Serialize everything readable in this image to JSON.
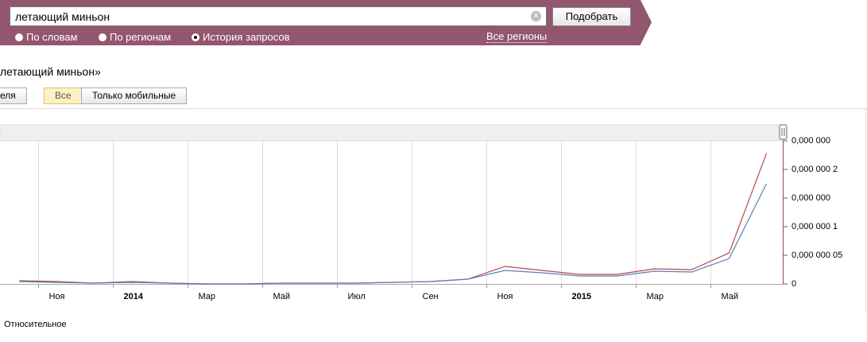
{
  "search": {
    "query": "летающий миньон",
    "button": "Подобрать",
    "modes": [
      {
        "label": "По словам",
        "checked": false
      },
      {
        "label": "По регионам",
        "checked": false
      },
      {
        "label": "История запросов",
        "checked": true
      }
    ],
    "region": "Все регионы"
  },
  "heading": "летающий миньон»",
  "tabs": [
    {
      "label": "еля",
      "active": false
    },
    {
      "label": "Все",
      "active": true
    },
    {
      "label": "Только мобильные",
      "active": false
    }
  ],
  "chart_data": {
    "type": "line",
    "categories": [
      null,
      "Ноя",
      null,
      "2014",
      null,
      "Мар",
      null,
      "Май",
      null,
      "Июл",
      null,
      "Сен",
      null,
      "Ноя",
      null,
      "2015",
      null,
      "Мар",
      null,
      "Май",
      null
    ],
    "series": [
      {
        "color": "#b5484c",
        "values": [
          5.6e-09,
          4.2e-09,
          1.4e-09,
          4.2e-09,
          1.4e-09,
          0,
          0,
          1.4e-09,
          1.4e-09,
          1.4e-09,
          2.8e-09,
          4.2e-09,
          8.3e-09,
          3.06e-08,
          2.36e-08,
          1.67e-08,
          1.67e-08,
          2.64e-08,
          2.5e-08,
          5.42e-08,
          2.28e-07
        ]
      },
      {
        "color": "#5a7fb5",
        "values": [
          4.2e-09,
          2.8e-09,
          1.4e-09,
          2.8e-09,
          1.4e-09,
          0,
          0,
          1.4e-09,
          1.4e-09,
          1.4e-09,
          2.8e-09,
          4.2e-09,
          8.3e-09,
          2.36e-08,
          1.94e-08,
          1.39e-08,
          1.39e-08,
          2.22e-08,
          2.08e-08,
          4.44e-08,
          1.75e-07
        ]
      }
    ],
    "ylim": [
      0,
      2.5e-07
    ],
    "yticks": [
      {
        "value": 0,
        "label": "0"
      },
      {
        "value": 5e-08,
        "label": "0,000 000 05"
      },
      {
        "value": 1e-07,
        "label": "0,000 000 1"
      },
      {
        "value": 1.5e-07,
        "label": "0,000 000"
      },
      {
        "value": 2e-07,
        "label": "0,000 000 2"
      },
      {
        "value": 2.5e-07,
        "label": "0,000 000"
      }
    ]
  },
  "footer_label": "Относительное"
}
